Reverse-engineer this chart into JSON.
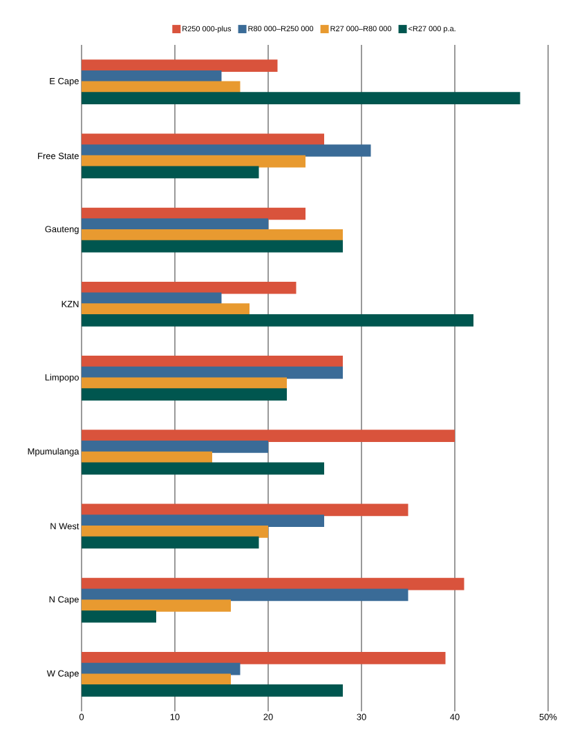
{
  "chart_data": {
    "type": "bar",
    "orientation": "horizontal",
    "categories": [
      "E Cape",
      "Free State",
      "Gauteng",
      "KZN",
      "Limpopo",
      "Mpumulanga",
      "N West",
      "N Cape",
      "W Cape"
    ],
    "series": [
      {
        "name": "R250 000-plus",
        "color": "#d9533c",
        "values": [
          21,
          26,
          24,
          23,
          28,
          40,
          35,
          41,
          39
        ]
      },
      {
        "name": "R80 000–R250 000",
        "color": "#3a6b97",
        "values": [
          15,
          31,
          20,
          15,
          28,
          20,
          26,
          35,
          17
        ]
      },
      {
        "name": "R27 000–R80 000",
        "color": "#e89a30",
        "values": [
          17,
          24,
          28,
          18,
          22,
          14,
          20,
          16,
          16
        ]
      },
      {
        "name": "<R27 000 p.a.",
        "color": "#00564f",
        "values": [
          47,
          19,
          28,
          42,
          22,
          26,
          19,
          8,
          28
        ]
      }
    ],
    "xlim": [
      0,
      50
    ],
    "xticks": [
      0,
      10,
      20,
      30,
      40,
      {
        "value": 50,
        "label": "50%"
      }
    ],
    "grid": "x",
    "legend": "top"
  }
}
